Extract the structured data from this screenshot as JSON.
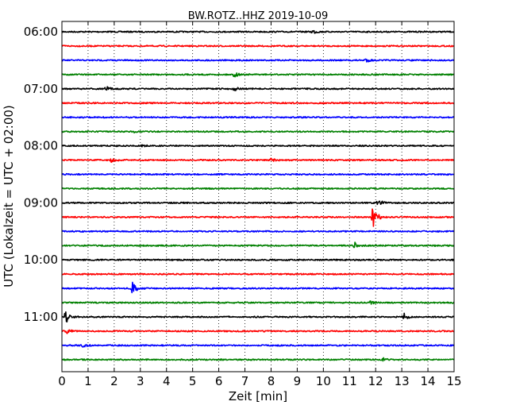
{
  "chart_data": {
    "type": "line",
    "title": "BW.ROTZ..HHZ 2019-10-09",
    "xlabel": "Zeit  [min]",
    "ylabel": "UTC (Lokalzeit = UTC + 02:00)",
    "xlim": [
      0,
      15
    ],
    "x_ticks": [
      "0",
      "1",
      "2",
      "3",
      "4",
      "5",
      "6",
      "7",
      "8",
      "9",
      "10",
      "11",
      "12",
      "13",
      "14",
      "15"
    ],
    "y_tick_labels": [
      "06:00",
      "07:00",
      "08:00",
      "09:00",
      "10:00",
      "11:00"
    ],
    "trace_colors": [
      "#000000",
      "#ff0000",
      "#0000ff",
      "#008000"
    ],
    "minor_gridlines": "dotted vertical at each minute",
    "traces": [
      {
        "start": "06:00",
        "color": "#000000",
        "events": [
          {
            "t": 9.6,
            "amp": 0.3
          }
        ]
      },
      {
        "start": "06:15",
        "color": "#ff0000",
        "events": []
      },
      {
        "start": "06:30",
        "color": "#0000ff",
        "events": [
          {
            "t": 11.6,
            "amp": 0.35
          }
        ]
      },
      {
        "start": "06:45",
        "color": "#008000",
        "events": [
          {
            "t": 6.6,
            "amp": 0.35
          }
        ]
      },
      {
        "start": "07:00",
        "color": "#000000",
        "events": [
          {
            "t": 1.7,
            "amp": 0.3
          },
          {
            "t": 6.6,
            "amp": 0.3
          }
        ]
      },
      {
        "start": "07:15",
        "color": "#ff0000",
        "events": []
      },
      {
        "start": "07:30",
        "color": "#0000ff",
        "events": []
      },
      {
        "start": "07:45",
        "color": "#008000",
        "events": [
          {
            "t": 2.8,
            "amp": 0.15
          }
        ]
      },
      {
        "start": "08:00",
        "color": "#000000",
        "events": [
          {
            "t": 3.1,
            "amp": 0.15
          }
        ]
      },
      {
        "start": "08:15",
        "color": "#ff0000",
        "events": [
          {
            "t": 1.9,
            "amp": 0.3
          },
          {
            "t": 8.0,
            "amp": 0.25
          }
        ]
      },
      {
        "start": "08:30",
        "color": "#0000ff",
        "events": []
      },
      {
        "start": "08:45",
        "color": "#008000",
        "events": []
      },
      {
        "start": "09:00",
        "color": "#000000",
        "events": [
          {
            "t": 12.1,
            "amp": 0.5
          }
        ]
      },
      {
        "start": "09:15",
        "color": "#ff0000",
        "events": [
          {
            "t": 11.9,
            "amp": 1.8
          }
        ]
      },
      {
        "start": "09:30",
        "color": "#0000ff",
        "events": []
      },
      {
        "start": "09:45",
        "color": "#008000",
        "events": [
          {
            "t": 11.2,
            "amp": 0.45
          }
        ]
      },
      {
        "start": "10:00",
        "color": "#000000",
        "events": []
      },
      {
        "start": "10:15",
        "color": "#ff0000",
        "events": []
      },
      {
        "start": "10:30",
        "color": "#0000ff",
        "events": [
          {
            "t": 2.7,
            "amp": 0.9
          }
        ]
      },
      {
        "start": "10:45",
        "color": "#008000",
        "events": [
          {
            "t": 11.8,
            "amp": 0.2
          }
        ]
      },
      {
        "start": "11:00",
        "color": "#000000",
        "events": [
          {
            "t": 0.15,
            "amp": 0.9
          },
          {
            "t": 13.1,
            "amp": 0.5
          }
        ]
      },
      {
        "start": "11:15",
        "color": "#ff0000",
        "events": [
          {
            "t": 0.2,
            "amp": 0.3
          }
        ]
      },
      {
        "start": "11:30",
        "color": "#0000ff",
        "events": [
          {
            "t": 0.8,
            "amp": 0.3
          }
        ]
      },
      {
        "start": "11:45",
        "color": "#008000",
        "events": [
          {
            "t": 12.3,
            "amp": 0.2
          }
        ]
      }
    ]
  }
}
